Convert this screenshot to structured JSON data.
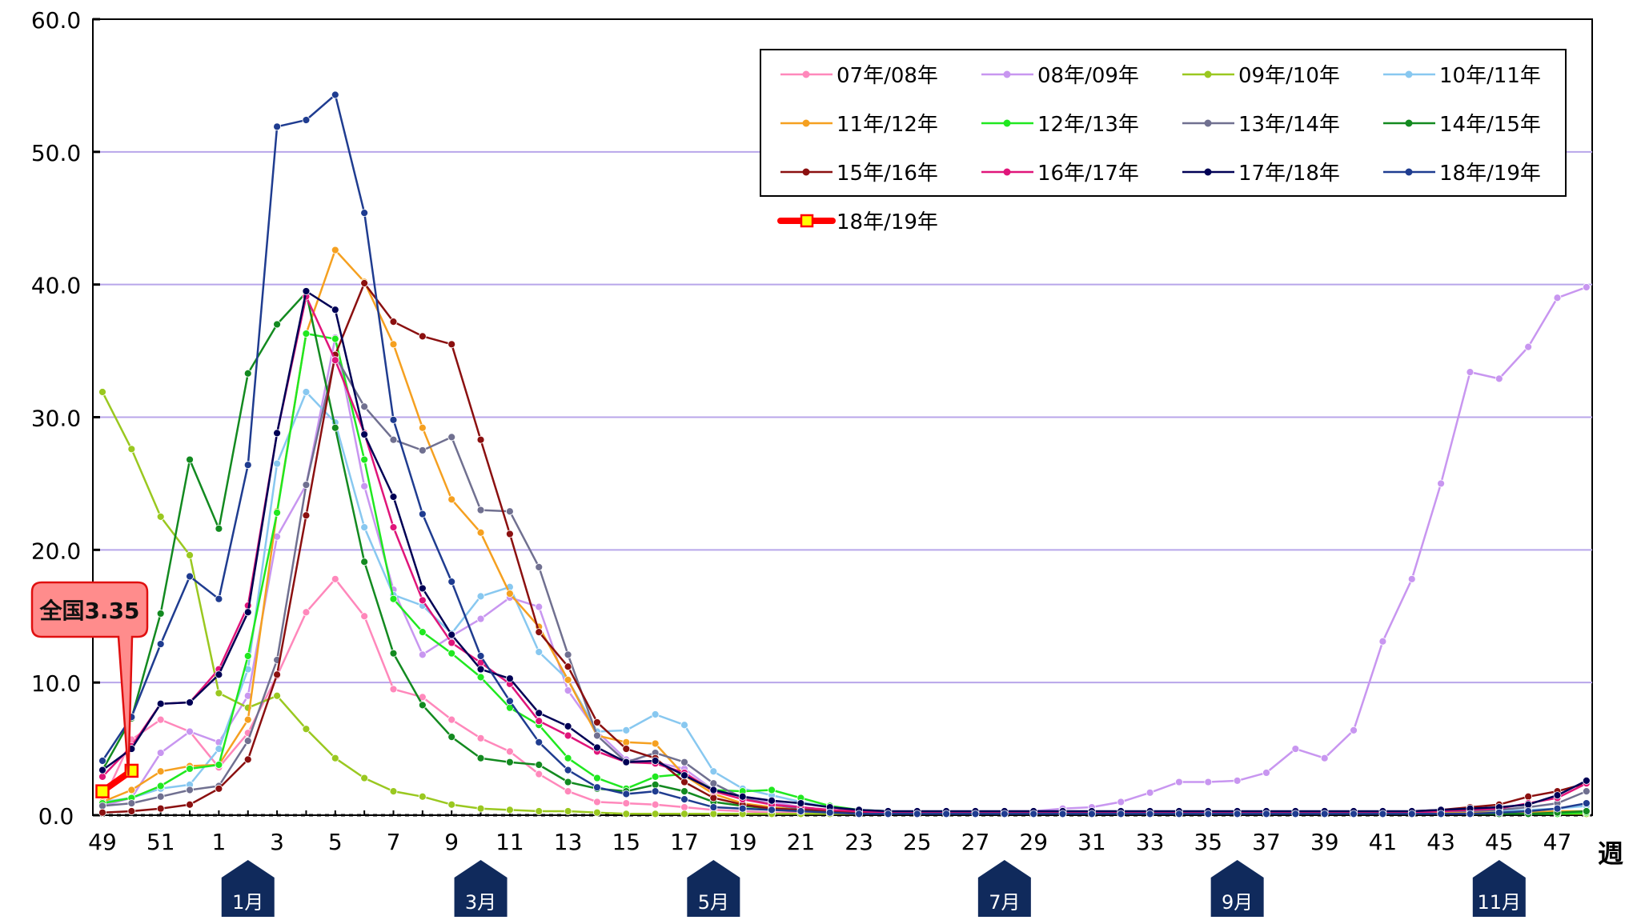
{
  "chart_data": {
    "type": "line",
    "y_axis": {
      "min": 0,
      "max": 60,
      "tick_labels": [
        "0.0",
        "10.0",
        "20.0",
        "30.0",
        "40.0",
        "50.0",
        "60.0"
      ],
      "gridlines": true
    },
    "x_axis": {
      "weeks": [
        49,
        50,
        51,
        52,
        1,
        2,
        3,
        4,
        5,
        6,
        7,
        8,
        9,
        10,
        11,
        12,
        13,
        14,
        15,
        16,
        17,
        18,
        19,
        20,
        21,
        22,
        23,
        24,
        25,
        26,
        27,
        28,
        29,
        30,
        31,
        32,
        33,
        34,
        35,
        36,
        37,
        38,
        39,
        40,
        41,
        42,
        43,
        44,
        45,
        46,
        47,
        48
      ],
      "tick_labels": [
        "49",
        "51",
        "1",
        "3",
        "5",
        "7",
        "9",
        "11",
        "13",
        "15",
        "17",
        "19",
        "21",
        "23",
        "25",
        "27",
        "29",
        "31",
        "33",
        "35",
        "37",
        "39",
        "41",
        "43",
        "45",
        "47"
      ],
      "tick_label_weeks": [
        49,
        51,
        1,
        3,
        5,
        7,
        9,
        11,
        13,
        15,
        17,
        19,
        21,
        23,
        25,
        27,
        29,
        31,
        33,
        35,
        37,
        39,
        41,
        43,
        45,
        47
      ],
      "unit_label": "週"
    },
    "months": [
      {
        "label": "1月",
        "week": 2
      },
      {
        "label": "3月",
        "week": 10
      },
      {
        "label": "5月",
        "week": 18
      },
      {
        "label": "7月",
        "week": 28
      },
      {
        "label": "9月",
        "week": 36
      },
      {
        "label": "11月",
        "week": 45
      }
    ],
    "legend": {
      "position": "top-right"
    },
    "series": [
      {
        "name": "07年/08年",
        "color": "#ff88bb",
        "values": [
          1.0,
          5.7,
          7.2,
          6.3,
          3.6,
          6.2,
          10.5,
          15.3,
          17.8,
          15.0,
          9.5,
          8.9,
          7.2,
          5.8,
          4.8,
          3.1,
          1.8,
          1.0,
          0.9,
          0.8,
          0.6,
          0.4,
          0.3,
          0.2,
          0.2,
          0.1,
          0.1,
          0.1,
          0.1,
          0.1,
          0.1,
          0.1,
          0.1,
          0.1,
          0.1,
          0.1,
          0.1,
          0.1,
          0.1,
          0.1,
          0.1,
          0.1,
          0.1,
          0.1,
          0.1,
          0.1,
          0.1,
          0.1,
          0.1,
          0.1,
          0.1,
          0.2
        ]
      },
      {
        "name": "08年/09年",
        "color": "#c896f0",
        "values": [
          0.7,
          1.3,
          4.7,
          6.3,
          5.5,
          9.0,
          21.0,
          24.9,
          36.0,
          24.8,
          17.0,
          12.1,
          13.5,
          14.8,
          16.4,
          15.7,
          9.4,
          6.3,
          4.2,
          4.0,
          3.5,
          1.9,
          1.4,
          1.0,
          0.6,
          0.4,
          0.3,
          0.2,
          0.2,
          0.2,
          0.2,
          0.3,
          0.3,
          0.5,
          0.6,
          1.0,
          1.7,
          2.5,
          2.5,
          2.6,
          3.2,
          5.0,
          4.3,
          6.4,
          13.1,
          17.8,
          25.0,
          33.4,
          32.9,
          35.3,
          39.0,
          39.8
        ]
      },
      {
        "name": "09年/10年",
        "color": "#9ac820",
        "values": [
          31.9,
          27.6,
          22.5,
          19.6,
          9.2,
          8.1,
          9.0,
          6.5,
          4.3,
          2.8,
          1.8,
          1.4,
          0.8,
          0.5,
          0.4,
          0.3,
          0.3,
          0.2,
          0.1,
          0.1,
          0.1,
          0.1,
          0.1,
          0.1,
          0.1,
          0.1,
          0.1,
          0.1,
          0.1,
          0.1,
          0.1,
          0.1,
          0.1,
          0.1,
          0.1,
          0.1,
          0.1,
          0.1,
          0.1,
          0.1,
          0.1,
          0.1,
          0.1,
          0.1,
          0.1,
          0.1,
          0.1,
          0.1,
          0.1,
          0.1,
          0.1,
          0.1
        ]
      },
      {
        "name": "10年/11年",
        "color": "#88c8f0",
        "values": [
          1.0,
          1.3,
          2.0,
          2.3,
          5.0,
          11.0,
          26.5,
          31.9,
          29.6,
          21.7,
          16.6,
          15.8,
          13.7,
          16.5,
          17.2,
          12.3,
          10.2,
          6.3,
          6.4,
          7.6,
          6.8,
          3.3,
          2.0,
          1.5,
          1.0,
          0.6,
          0.4,
          0.3,
          0.2,
          0.2,
          0.2,
          0.2,
          0.2,
          0.2,
          0.2,
          0.2,
          0.2,
          0.2,
          0.2,
          0.2,
          0.2,
          0.2,
          0.2,
          0.2,
          0.2,
          0.2,
          0.2,
          0.2,
          0.3,
          0.4,
          0.5,
          0.7
        ]
      },
      {
        "name": "11年/12年",
        "color": "#f5a020",
        "values": [
          1.0,
          1.9,
          3.3,
          3.7,
          3.8,
          7.2,
          22.9,
          36.3,
          42.6,
          40.2,
          35.5,
          29.2,
          23.8,
          21.3,
          16.7,
          14.2,
          10.2,
          6.0,
          5.5,
          5.4,
          3.0,
          1.6,
          0.9,
          0.6,
          0.4,
          0.3,
          0.2,
          0.2,
          0.2,
          0.2,
          0.2,
          0.2,
          0.2,
          0.2,
          0.2,
          0.2,
          0.2,
          0.2,
          0.2,
          0.2,
          0.2,
          0.2,
          0.2,
          0.2,
          0.2,
          0.2,
          0.2,
          0.2,
          0.2,
          0.2,
          0.3,
          0.3
        ]
      },
      {
        "name": "12年/13年",
        "color": "#20e820",
        "values": [
          0.9,
          1.3,
          2.2,
          3.5,
          3.8,
          12.0,
          22.8,
          36.3,
          35.9,
          26.8,
          16.3,
          13.8,
          12.2,
          10.4,
          8.1,
          6.8,
          4.3,
          2.8,
          2.0,
          2.9,
          3.1,
          1.9,
          1.8,
          1.9,
          1.3,
          0.7,
          0.4,
          0.3,
          0.2,
          0.2,
          0.2,
          0.2,
          0.2,
          0.1,
          0.1,
          0.1,
          0.1,
          0.1,
          0.1,
          0.1,
          0.1,
          0.1,
          0.1,
          0.1,
          0.1,
          0.1,
          0.1,
          0.1,
          0.1,
          0.1,
          0.1,
          0.2
        ]
      },
      {
        "name": "13年/14年",
        "color": "#707090",
        "values": [
          0.7,
          0.9,
          1.4,
          1.9,
          2.2,
          5.6,
          11.7,
          24.9,
          34.6,
          30.8,
          28.3,
          27.5,
          28.5,
          23.0,
          22.9,
          18.7,
          12.1,
          6.0,
          4.0,
          4.7,
          4.0,
          2.4,
          1.3,
          0.8,
          0.5,
          0.4,
          0.3,
          0.2,
          0.2,
          0.2,
          0.2,
          0.2,
          0.2,
          0.2,
          0.2,
          0.2,
          0.2,
          0.2,
          0.2,
          0.2,
          0.2,
          0.2,
          0.2,
          0.2,
          0.2,
          0.2,
          0.3,
          0.3,
          0.4,
          0.6,
          0.9,
          1.8
        ]
      },
      {
        "name": "14年/15年",
        "color": "#138a20",
        "values": [
          3.4,
          7.3,
          15.2,
          26.8,
          21.6,
          33.3,
          37.0,
          39.4,
          29.2,
          19.1,
          12.2,
          8.3,
          5.9,
          4.3,
          4.0,
          3.8,
          2.5,
          2.0,
          1.8,
          2.3,
          1.8,
          1.0,
          0.7,
          0.5,
          0.4,
          0.3,
          0.2,
          0.1,
          0.1,
          0.1,
          0.1,
          0.1,
          0.1,
          0.1,
          0.1,
          0.1,
          0.1,
          0.1,
          0.1,
          0.1,
          0.1,
          0.1,
          0.1,
          0.1,
          0.1,
          0.1,
          0.1,
          0.1,
          0.1,
          0.1,
          0.2,
          0.3
        ]
      },
      {
        "name": "15年/16年",
        "color": "#8b1010",
        "values": [
          0.2,
          0.3,
          0.5,
          0.8,
          2.0,
          4.2,
          10.6,
          22.6,
          34.7,
          40.1,
          37.2,
          36.1,
          35.5,
          28.3,
          21.2,
          13.8,
          11.2,
          7.0,
          5.0,
          4.3,
          2.5,
          1.3,
          0.8,
          0.5,
          0.4,
          0.3,
          0.2,
          0.2,
          0.2,
          0.2,
          0.2,
          0.2,
          0.2,
          0.2,
          0.2,
          0.2,
          0.2,
          0.2,
          0.2,
          0.2,
          0.2,
          0.2,
          0.2,
          0.2,
          0.2,
          0.3,
          0.4,
          0.6,
          0.8,
          1.4,
          1.8,
          2.4
        ]
      },
      {
        "name": "16年/17年",
        "color": "#e0157a",
        "values": [
          2.9,
          5.2,
          8.4,
          8.5,
          11.0,
          15.8,
          28.8,
          39.1,
          34.3,
          28.8,
          21.7,
          16.2,
          13.0,
          11.5,
          9.9,
          7.1,
          6.0,
          4.8,
          4.0,
          3.9,
          3.2,
          1.8,
          1.2,
          0.8,
          0.6,
          0.4,
          0.3,
          0.2,
          0.2,
          0.2,
          0.2,
          0.2,
          0.2,
          0.2,
          0.2,
          0.2,
          0.2,
          0.2,
          0.2,
          0.2,
          0.2,
          0.2,
          0.2,
          0.2,
          0.2,
          0.2,
          0.3,
          0.4,
          0.5,
          0.9,
          1.3,
          2.4
        ]
      },
      {
        "name": "17年/18年",
        "color": "#000055",
        "values": [
          3.4,
          5.0,
          8.4,
          8.5,
          10.6,
          15.3,
          28.8,
          39.5,
          38.1,
          28.7,
          24.0,
          17.1,
          13.6,
          11.0,
          10.3,
          7.7,
          6.7,
          5.1,
          4.0,
          4.1,
          3.0,
          1.9,
          1.4,
          1.1,
          0.9,
          0.6,
          0.4,
          0.3,
          0.3,
          0.3,
          0.3,
          0.3,
          0.3,
          0.3,
          0.3,
          0.3,
          0.3,
          0.3,
          0.3,
          0.3,
          0.3,
          0.3,
          0.3,
          0.3,
          0.3,
          0.3,
          0.4,
          0.5,
          0.6,
          0.8,
          1.5,
          2.6
        ]
      },
      {
        "name": "18年/19年",
        "color": "#1f3c90",
        "values": [
          4.1,
          7.4,
          12.9,
          18.0,
          16.3,
          26.4,
          51.9,
          52.4,
          54.3,
          45.4,
          29.8,
          22.7,
          17.6,
          12.0,
          8.6,
          5.5,
          3.4,
          2.1,
          1.6,
          1.8,
          1.2,
          0.6,
          0.5,
          0.4,
          0.3,
          0.2,
          0.1,
          0.1,
          0.1,
          0.1,
          0.1,
          0.1,
          0.1,
          0.1,
          0.1,
          0.1,
          0.1,
          0.1,
          0.1,
          0.1,
          0.1,
          0.1,
          0.1,
          0.1,
          0.1,
          0.1,
          0.1,
          0.1,
          0.2,
          0.3,
          0.5,
          0.9
        ]
      },
      {
        "name": "18年/19年",
        "color": "#ff0000",
        "values": [
          1.8,
          3.35
        ],
        "current": true
      }
    ],
    "annotation": {
      "label": "全国",
      "value": "3.35",
      "week": 50
    }
  }
}
